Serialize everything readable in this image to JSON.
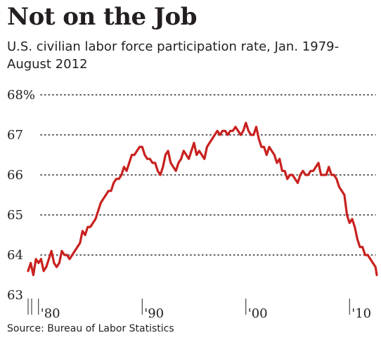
{
  "title": "Not on the Job",
  "subtitle": "U.S. civilian labor force participation rate, Jan. 1979-August 2012",
  "source": "Source: Bureau of Labor Statistics",
  "colors": {
    "line": "#c8211f",
    "grid": "#231f20",
    "text": "#231f20"
  },
  "chart_data": {
    "type": "line",
    "title": "Not on the Job",
    "subtitle": "U.S. civilian labor force participation rate, Jan. 1979-August 2012",
    "xlabel": "",
    "ylabel": "",
    "x_range": [
      1979.0,
      2012.625
    ],
    "ylim": [
      63,
      68
    ],
    "grid": true,
    "y_ticks": [
      {
        "value": 68,
        "label": "68%"
      },
      {
        "value": 67,
        "label": "67"
      },
      {
        "value": 66,
        "label": "66"
      },
      {
        "value": 65,
        "label": "65"
      },
      {
        "value": 64,
        "label": "64"
      },
      {
        "value": 63,
        "label": "63"
      }
    ],
    "x_ticks": [
      {
        "value": 1980,
        "label": "'80"
      },
      {
        "value": 1990,
        "label": "'90"
      },
      {
        "value": 2000,
        "label": "'00"
      },
      {
        "value": 2010,
        "label": "'10"
      }
    ],
    "series": [
      {
        "values": [
          [
            1979.0,
            63.6
          ],
          [
            1979.25,
            63.8
          ],
          [
            1979.5,
            63.5
          ],
          [
            1979.75,
            63.9
          ],
          [
            1980.0,
            63.8
          ],
          [
            1980.25,
            63.9
          ],
          [
            1980.5,
            63.6
          ],
          [
            1980.75,
            63.7
          ],
          [
            1981.0,
            63.9
          ],
          [
            1981.25,
            64.1
          ],
          [
            1981.5,
            63.8
          ],
          [
            1981.75,
            63.7
          ],
          [
            1982.0,
            63.8
          ],
          [
            1982.25,
            64.1
          ],
          [
            1982.5,
            64.0
          ],
          [
            1982.75,
            64.0
          ],
          [
            1983.0,
            63.9
          ],
          [
            1983.25,
            64.0
          ],
          [
            1983.5,
            64.1
          ],
          [
            1983.75,
            64.2
          ],
          [
            1984.0,
            64.3
          ],
          [
            1984.25,
            64.6
          ],
          [
            1984.5,
            64.5
          ],
          [
            1984.75,
            64.7
          ],
          [
            1985.0,
            64.7
          ],
          [
            1985.25,
            64.8
          ],
          [
            1985.5,
            64.9
          ],
          [
            1985.75,
            65.1
          ],
          [
            1986.0,
            65.3
          ],
          [
            1986.25,
            65.4
          ],
          [
            1986.5,
            65.5
          ],
          [
            1986.75,
            65.6
          ],
          [
            1987.0,
            65.6
          ],
          [
            1987.25,
            65.8
          ],
          [
            1987.5,
            65.9
          ],
          [
            1987.75,
            65.9
          ],
          [
            1988.0,
            66.0
          ],
          [
            1988.25,
            66.2
          ],
          [
            1988.5,
            66.1
          ],
          [
            1988.75,
            66.3
          ],
          [
            1989.0,
            66.5
          ],
          [
            1989.25,
            66.5
          ],
          [
            1989.5,
            66.6
          ],
          [
            1989.75,
            66.7
          ],
          [
            1990.0,
            66.7
          ],
          [
            1990.25,
            66.5
          ],
          [
            1990.5,
            66.4
          ],
          [
            1990.75,
            66.4
          ],
          [
            1991.0,
            66.3
          ],
          [
            1991.25,
            66.3
          ],
          [
            1991.5,
            66.1
          ],
          [
            1991.75,
            66.0
          ],
          [
            1992.0,
            66.2
          ],
          [
            1992.25,
            66.5
          ],
          [
            1992.5,
            66.6
          ],
          [
            1992.75,
            66.3
          ],
          [
            1993.0,
            66.2
          ],
          [
            1993.25,
            66.1
          ],
          [
            1993.5,
            66.3
          ],
          [
            1993.75,
            66.4
          ],
          [
            1994.0,
            66.6
          ],
          [
            1994.25,
            66.5
          ],
          [
            1994.5,
            66.4
          ],
          [
            1994.75,
            66.6
          ],
          [
            1995.0,
            66.8
          ],
          [
            1995.25,
            66.5
          ],
          [
            1995.5,
            66.6
          ],
          [
            1995.75,
            66.5
          ],
          [
            1996.0,
            66.4
          ],
          [
            1996.25,
            66.7
          ],
          [
            1996.5,
            66.8
          ],
          [
            1996.75,
            66.9
          ],
          [
            1997.0,
            67.0
          ],
          [
            1997.25,
            67.1
          ],
          [
            1997.5,
            67.0
          ],
          [
            1997.75,
            67.1
          ],
          [
            1998.0,
            67.1
          ],
          [
            1998.25,
            67.0
          ],
          [
            1998.5,
            67.1
          ],
          [
            1998.75,
            67.1
          ],
          [
            1999.0,
            67.2
          ],
          [
            1999.25,
            67.1
          ],
          [
            1999.5,
            67.0
          ],
          [
            1999.75,
            67.1
          ],
          [
            2000.0,
            67.3
          ],
          [
            2000.25,
            67.1
          ],
          [
            2000.5,
            67.0
          ],
          [
            2000.75,
            67.0
          ],
          [
            2001.0,
            67.2
          ],
          [
            2001.25,
            66.9
          ],
          [
            2001.5,
            66.7
          ],
          [
            2001.75,
            66.7
          ],
          [
            2002.0,
            66.5
          ],
          [
            2002.25,
            66.7
          ],
          [
            2002.5,
            66.6
          ],
          [
            2002.75,
            66.5
          ],
          [
            2003.0,
            66.3
          ],
          [
            2003.25,
            66.4
          ],
          [
            2003.5,
            66.1
          ],
          [
            2003.75,
            66.1
          ],
          [
            2004.0,
            65.9
          ],
          [
            2004.25,
            66.0
          ],
          [
            2004.5,
            66.0
          ],
          [
            2004.75,
            65.9
          ],
          [
            2005.0,
            65.8
          ],
          [
            2005.25,
            66.0
          ],
          [
            2005.5,
            66.1
          ],
          [
            2005.75,
            66.0
          ],
          [
            2006.0,
            66.0
          ],
          [
            2006.25,
            66.1
          ],
          [
            2006.5,
            66.1
          ],
          [
            2006.75,
            66.2
          ],
          [
            2007.0,
            66.3
          ],
          [
            2007.25,
            66.0
          ],
          [
            2007.5,
            66.0
          ],
          [
            2007.75,
            66.0
          ],
          [
            2008.0,
            66.2
          ],
          [
            2008.25,
            66.0
          ],
          [
            2008.5,
            66.0
          ],
          [
            2008.75,
            65.9
          ],
          [
            2009.0,
            65.7
          ],
          [
            2009.25,
            65.6
          ],
          [
            2009.5,
            65.5
          ],
          [
            2009.75,
            65.0
          ],
          [
            2010.0,
            64.8
          ],
          [
            2010.25,
            64.9
          ],
          [
            2010.5,
            64.7
          ],
          [
            2010.75,
            64.4
          ],
          [
            2011.0,
            64.2
          ],
          [
            2011.25,
            64.2
          ],
          [
            2011.5,
            64.0
          ],
          [
            2011.75,
            64.0
          ],
          [
            2012.0,
            63.9
          ],
          [
            2012.25,
            63.8
          ],
          [
            2012.5,
            63.7
          ],
          [
            2012.625,
            63.5
          ]
        ]
      }
    ]
  }
}
